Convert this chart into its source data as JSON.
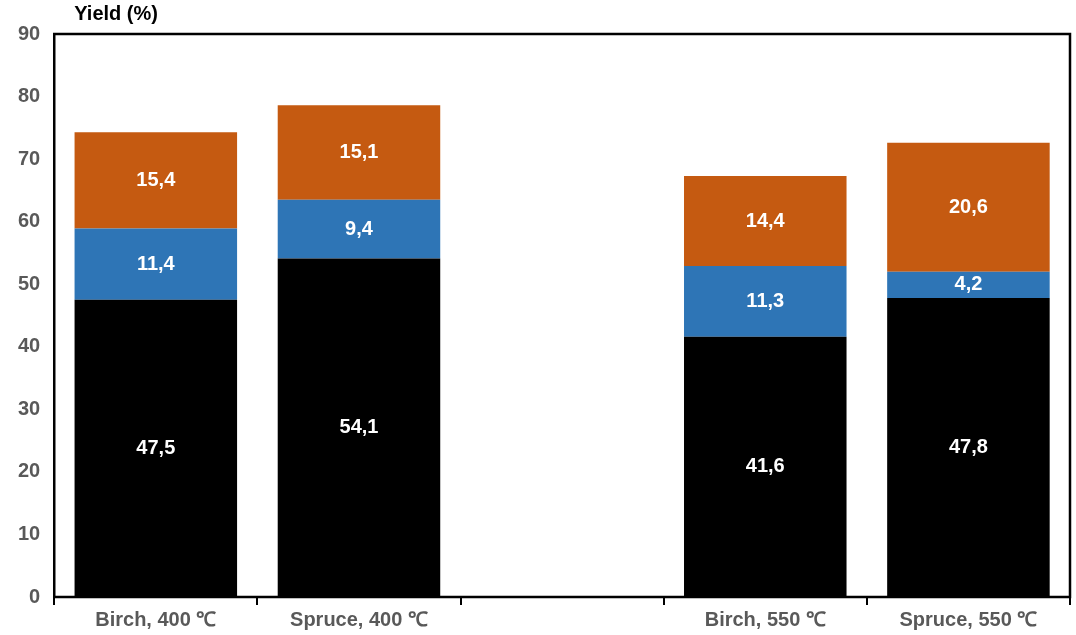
{
  "chart_data": {
    "type": "bar",
    "stacked": true,
    "ylabel": "Yield (%)",
    "categories": [
      "Birch, 400 ℃",
      "Spruce, 400 ℃",
      null,
      "Birch, 550 ℃",
      "Spruce, 550 ℃"
    ],
    "series": [
      {
        "color": "#000000",
        "values": [
          47.5,
          54.1,
          null,
          41.6,
          47.8
        ],
        "value_labels": [
          "47,5",
          "54,1",
          null,
          "41,6",
          "47,8"
        ]
      },
      {
        "color": "#2e75b6",
        "values": [
          11.4,
          9.4,
          null,
          11.3,
          4.2
        ],
        "value_labels": [
          "11,4",
          "9,4",
          null,
          "11,3",
          "4,2"
        ]
      },
      {
        "color": "#c55a11",
        "values": [
          15.4,
          15.1,
          null,
          14.4,
          20.6
        ],
        "value_labels": [
          "15,4",
          "15,1",
          null,
          "14,4",
          "20,6"
        ]
      }
    ],
    "ylim": [
      0,
      90
    ],
    "yticks": [
      0,
      10,
      20,
      30,
      40,
      50,
      60,
      70,
      80,
      90
    ],
    "grid": false,
    "legend": false
  }
}
